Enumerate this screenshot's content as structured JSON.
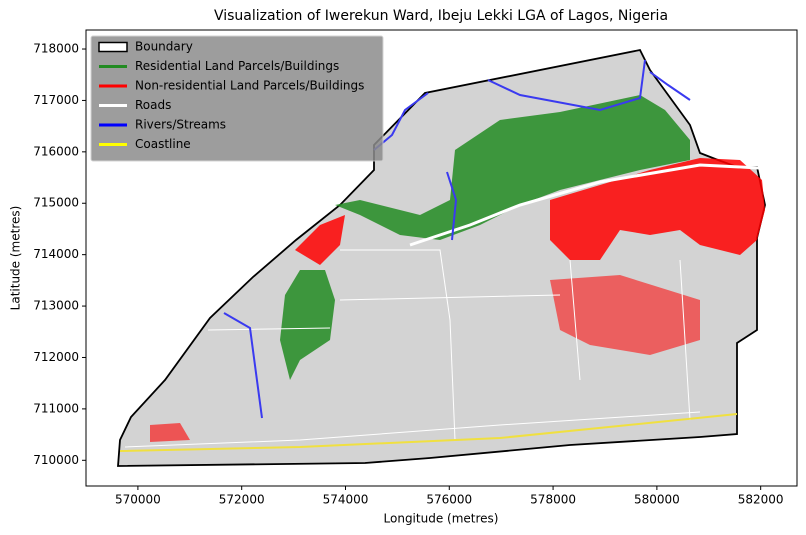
{
  "chart_data": {
    "type": "map",
    "title": "Visualization of Iwerekun Ward, Ibeju Lekki LGA of Lagos, Nigeria",
    "xlabel": "Longitude (metres)",
    "ylabel": "Latitude (metres)",
    "xlim": [
      569000,
      582700
    ],
    "ylim": [
      709500,
      718370
    ],
    "xticks": [
      570000,
      572000,
      574000,
      576000,
      578000,
      580000,
      582000
    ],
    "yticks": [
      710000,
      711000,
      712000,
      713000,
      714000,
      715000,
      716000,
      717000,
      718000
    ],
    "legend": {
      "loc": "upper left",
      "entries": [
        {
          "name": "Boundary",
          "color": "#000000",
          "marker": "patch"
        },
        {
          "name": "Residential Land Parcels/Buildings",
          "color": "#228b22",
          "marker": "line"
        },
        {
          "name": "Non-residential Land Parcels/Buildings",
          "color": "#ff0000",
          "marker": "line"
        },
        {
          "name": "Roads",
          "color": "#ffffff",
          "marker": "line"
        },
        {
          "name": "Rivers/Streams",
          "color": "#0000ff",
          "marker": "line"
        },
        {
          "name": "Coastline",
          "color": "#ffff00",
          "marker": "line"
        }
      ]
    }
  }
}
